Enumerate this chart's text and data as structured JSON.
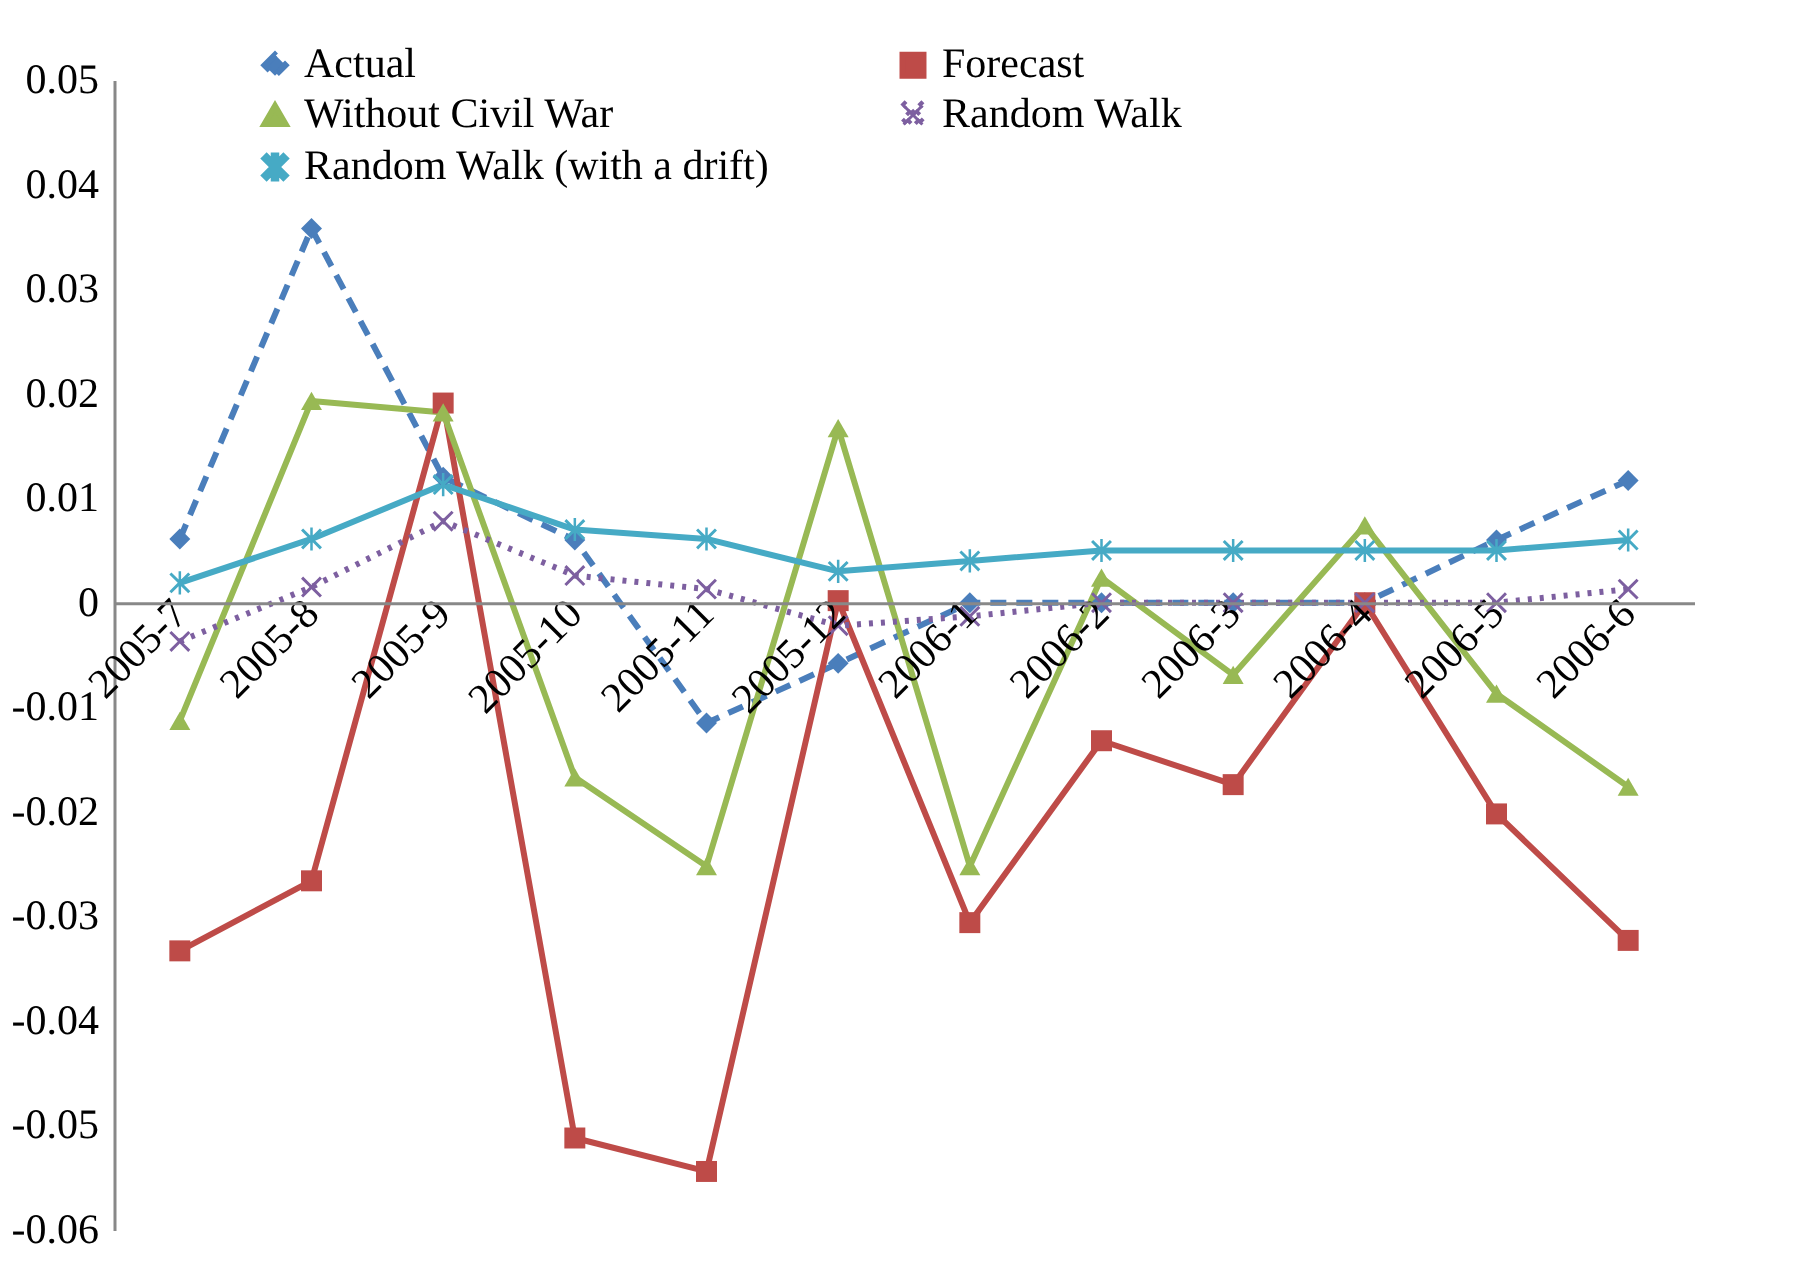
{
  "chart_data": {
    "type": "line",
    "categories": [
      "2005-7",
      "2005-8",
      "2005-9",
      "2005-10",
      "2005-11",
      "2005-12",
      "2006-1",
      "2006-2",
      "2006-3",
      "2006-4",
      "2006-5",
      "2006-6"
    ],
    "series": [
      {
        "name": "Actual",
        "color": "#4a7ebb",
        "marker": "diamond",
        "line_style": "dashed",
        "values": [
          0.0061,
          0.0358,
          0.012,
          0.006,
          -0.0115,
          -0.0058,
          0,
          0,
          0,
          0,
          0.006,
          0.0117
        ]
      },
      {
        "name": "Forecast",
        "color": "#be4b48",
        "marker": "square",
        "line_style": "solid",
        "values": [
          -0.0333,
          -0.0266,
          0.0191,
          -0.0512,
          -0.0544,
          0.0002,
          -0.0306,
          -0.0132,
          -0.0174,
          0,
          -0.0202,
          -0.0323
        ]
      },
      {
        "name": "Without Civil War",
        "color": "#98b954",
        "marker": "triangle",
        "line_style": "solid",
        "values": [
          -0.0113,
          0.0193,
          0.0182,
          -0.0167,
          -0.0252,
          0.0167,
          -0.0252,
          0.0024,
          -0.0069,
          0.0074,
          -0.0087,
          -0.0176
        ]
      },
      {
        "name": "Random Walk",
        "color": "#7d5fa0",
        "marker": "cross",
        "line_style": "dotted",
        "values": [
          -0.0037,
          0.0015,
          0.0078,
          0.0026,
          0.0013,
          -0.0022,
          -0.0013,
          0,
          0,
          0,
          0,
          0.0013
        ]
      },
      {
        "name": "Random Walk (with a drift)",
        "color": "#46aac5",
        "marker": "star",
        "line_style": "solid",
        "values": [
          0.0019,
          0.0061,
          0.0113,
          0.007,
          0.0061,
          0.003,
          0.004,
          0.005,
          0.005,
          0.005,
          0.005,
          0.006
        ]
      }
    ],
    "ylim": [
      -0.06,
      0.05
    ],
    "yticks": [
      {
        "value": -0.06,
        "label": "-0.06"
      },
      {
        "value": -0.05,
        "label": "-0.05"
      },
      {
        "value": -0.04,
        "label": "-0.04"
      },
      {
        "value": -0.03,
        "label": "-0.03"
      },
      {
        "value": -0.02,
        "label": "-0.02"
      },
      {
        "value": -0.01,
        "label": "-0.01"
      },
      {
        "value": 0,
        "label": "0"
      },
      {
        "value": 0.01,
        "label": "0.01"
      },
      {
        "value": 0.02,
        "label": "0.02"
      },
      {
        "value": 0.03,
        "label": "0.03"
      },
      {
        "value": 0.04,
        "label": "0.04"
      },
      {
        "value": 0.05,
        "label": "0.05"
      }
    ],
    "grid": false,
    "legend": "top"
  }
}
